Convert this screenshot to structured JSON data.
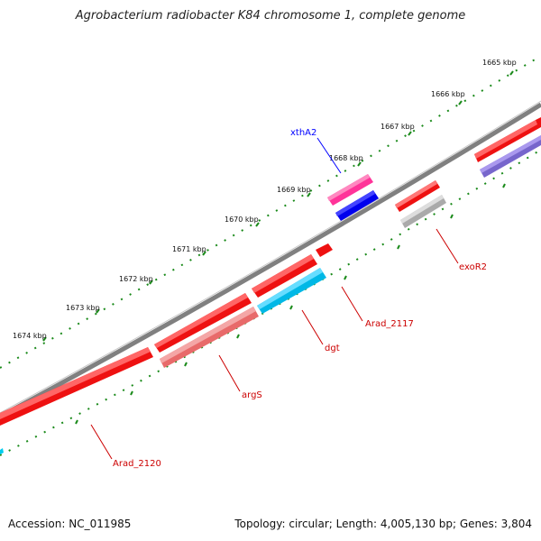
{
  "title": "Agrobacterium radiobacter K84 chromosome 1, complete genome",
  "footer": {
    "accession": "Accession: NC_011985",
    "summary": "Topology: circular; Length: 4,005,130 bp; Genes: 3,804"
  },
  "ticks": [
    {
      "label": "1665 kbp"
    },
    {
      "label": "1666 kbp"
    },
    {
      "label": "1667 kbp"
    },
    {
      "label": "1668 kbp"
    },
    {
      "label": "1669 kbp"
    },
    {
      "label": "1670 kbp"
    },
    {
      "label": "1671 kbp"
    },
    {
      "label": "1672 kbp"
    },
    {
      "label": "1673 kbp"
    },
    {
      "label": "1674 kbp"
    }
  ],
  "gene_labels": [
    {
      "id": "xthA2",
      "text": "xthA2",
      "color": "#0000ff"
    },
    {
      "id": "exoR2",
      "text": "exoR2",
      "color": "#cc0000"
    },
    {
      "id": "Arad_2117",
      "text": "Arad_2117",
      "color": "#cc0000"
    },
    {
      "id": "dgt",
      "text": "dgt",
      "color": "#cc0000"
    },
    {
      "id": "argS",
      "text": "argS",
      "color": "#cc0000"
    },
    {
      "id": "Arad_2120",
      "text": "Arad_2120",
      "color": "#cc0000"
    }
  ],
  "colors": {
    "backbone": "#808080",
    "tick_dots": "#1a8a1a",
    "cds": "#ee1111",
    "gene": "#f08080",
    "trna": "#00b8e6",
    "rrna_like": "#aaaaaa",
    "pink_feature": "#ff3399",
    "blue_feature": "#0000ee",
    "purple_feature": "#7766cc"
  }
}
